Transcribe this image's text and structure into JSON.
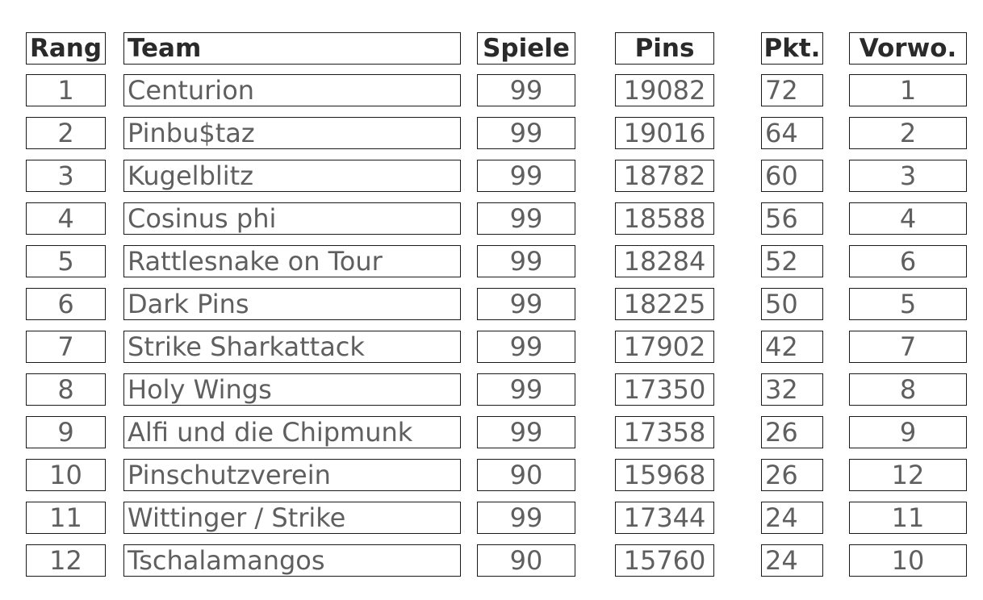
{
  "table": {
    "headers": [
      "Rang",
      "Team",
      "Spiele",
      "Pins",
      "Pkt.",
      "Vorwo."
    ],
    "rows": [
      [
        "1",
        "Centurion",
        "99",
        "19082",
        "72",
        "1"
      ],
      [
        "2",
        "Pinbu$taz",
        "99",
        "19016",
        "64",
        "2"
      ],
      [
        "3",
        "Kugelblitz",
        "99",
        "18782",
        "60",
        "3"
      ],
      [
        "4",
        "Cosinus phi",
        "99",
        "18588",
        "56",
        "4"
      ],
      [
        "5",
        "Rattlesnake on Tour",
        "99",
        "18284",
        "52",
        "6"
      ],
      [
        "6",
        "Dark Pins",
        "99",
        "18225",
        "50",
        "5"
      ],
      [
        "7",
        "Strike Sharkattack",
        "99",
        "17902",
        "42",
        "7"
      ],
      [
        "8",
        "Holy Wings",
        "99",
        "17350",
        "32",
        "8"
      ],
      [
        "9",
        "Alfi und die Chipmunk",
        "99",
        "17358",
        "26",
        "9"
      ],
      [
        "10",
        "Pinschutzverein",
        "90",
        "15968",
        "26",
        "12"
      ],
      [
        "11",
        "Wittinger / Strike",
        "99",
        "17344",
        "24",
        "11"
      ],
      [
        "12",
        "Tschalamangos",
        "90",
        "15760",
        "24",
        "10"
      ]
    ]
  }
}
